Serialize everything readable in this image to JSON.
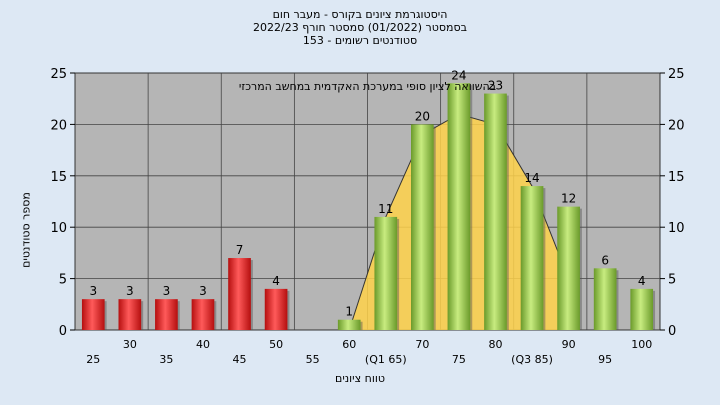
{
  "titles": {
    "line1": "היסטוגרמת ציונים בקורס - מעבר חום",
    "line2": "בסמסטר  (01/2022)  סמסטר חורף 2022/23",
    "line3": "סטודנטים רשומים - 153"
  },
  "colors": {
    "background": "#dde8f4",
    "plot_area": "#b5b5b5",
    "grid": "#444444",
    "fail_bar": "#e02020",
    "pass_bar": "#8ec63f",
    "distribution": "#ffd24a"
  },
  "chart_data": {
    "type": "bar",
    "title": "היסטוגרמת ציונים בקורס - מעבר חום",
    "annotation": "בהשוואה לציון סופי במערכת האקדמית במחשב המרכזי",
    "xlabel": "טווח ציונים",
    "ylabel": "מספר סטודנטים",
    "ylim": [
      0,
      25
    ],
    "yticks": [
      0,
      5,
      10,
      15,
      20,
      25
    ],
    "grid": true,
    "categories": [
      "25",
      "30",
      "35",
      "40",
      "45",
      "50",
      "55",
      "60",
      "65",
      "70",
      "75",
      "80",
      "85",
      "90",
      "95",
      "100"
    ],
    "tick_labels": [
      "25",
      "30",
      "35",
      "40",
      "45",
      "50",
      "55",
      "60",
      "(Q1 65)",
      "70",
      "75",
      "80",
      "(Q3 85)",
      "90",
      "95",
      "100"
    ],
    "values": [
      3,
      3,
      3,
      3,
      7,
      4,
      0,
      1,
      11,
      20,
      24,
      23,
      14,
      12,
      6,
      4
    ],
    "bar_status": [
      "fail",
      "fail",
      "fail",
      "fail",
      "fail",
      "fail",
      "fail",
      "pass",
      "pass",
      "pass",
      "pass",
      "pass",
      "pass",
      "pass",
      "pass",
      "pass"
    ],
    "distribution_curve": {
      "x": [
        "60",
        "65",
        "70",
        "75",
        "80",
        "85",
        "90"
      ],
      "y": [
        0,
        11,
        19,
        21,
        20,
        14,
        5
      ]
    }
  }
}
